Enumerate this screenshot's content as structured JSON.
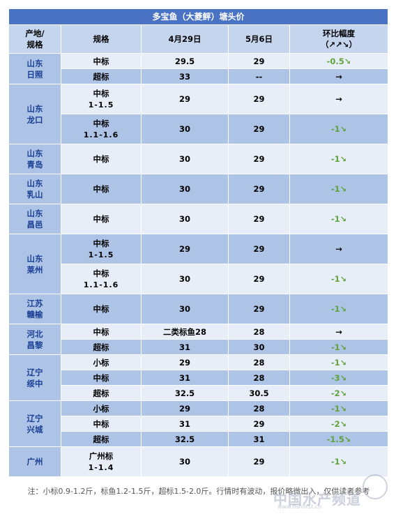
{
  "title": "多宝鱼（大菱鲆）塘头价",
  "headers": {
    "place": [
      "产地/",
      "规格"
    ],
    "spec": "规格",
    "date1": "4月29日",
    "date2": "5月6日",
    "change": [
      "环比幅度",
      "（↗↗↘）"
    ]
  },
  "groups": [
    {
      "place": [
        "山东",
        "日照"
      ],
      "rows": [
        {
          "spec": [
            "中标"
          ],
          "p1": "29.5",
          "p2": "29",
          "chg": "-0.5↘",
          "dir": "down",
          "h": 22
        },
        {
          "spec": [
            "超标"
          ],
          "p1": "33",
          "p2": "--",
          "chg": "→",
          "dir": "flat",
          "h": 22
        }
      ]
    },
    {
      "place": [
        "山东",
        "龙口"
      ],
      "rows": [
        {
          "spec": [
            "中标",
            "1-1.5"
          ],
          "p1": "29",
          "p2": "29",
          "chg": "→",
          "dir": "flat",
          "h": 43
        },
        {
          "spec": [
            "中标",
            "1.1-1.6"
          ],
          "p1": "30",
          "p2": "29",
          "chg": "-1↘",
          "dir": "down",
          "h": 43
        }
      ]
    },
    {
      "place": [
        "山东",
        "青岛"
      ],
      "rows": [
        {
          "spec": [
            "中标"
          ],
          "p1": "30",
          "p2": "29",
          "chg": "-1↘",
          "dir": "down",
          "h": 43
        }
      ]
    },
    {
      "place": [
        "山东",
        "乳山"
      ],
      "rows": [
        {
          "spec": [
            "中标"
          ],
          "p1": "30",
          "p2": "29",
          "chg": "-1↘",
          "dir": "down",
          "h": 43
        }
      ]
    },
    {
      "place": [
        "山东",
        "昌邑"
      ],
      "rows": [
        {
          "spec": [
            "中标"
          ],
          "p1": "30",
          "p2": "29",
          "chg": "-1↘",
          "dir": "down",
          "h": 43
        }
      ]
    },
    {
      "place": [
        "山东",
        "莱州"
      ],
      "rows": [
        {
          "spec": [
            "中标",
            "1-1.5"
          ],
          "p1": "29",
          "p2": "29",
          "chg": "→",
          "dir": "flat",
          "h": 43
        },
        {
          "spec": [
            "中标",
            "1.1-1.6"
          ],
          "p1": "30",
          "p2": "29",
          "chg": "-1↘",
          "dir": "down",
          "h": 43
        }
      ]
    },
    {
      "place": [
        "江苏",
        "赣榆"
      ],
      "rows": [
        {
          "spec": [
            "中标"
          ],
          "p1": "30",
          "p2": "29",
          "chg": "-1↘",
          "dir": "down",
          "h": 43
        }
      ]
    },
    {
      "place": [
        "河北",
        "昌黎"
      ],
      "rows": [
        {
          "spec": [
            "中标"
          ],
          "p1": "二类标鱼28",
          "p2": "28",
          "chg": "→",
          "dir": "flat",
          "h": 22
        },
        {
          "spec": [
            "超标"
          ],
          "p1": "31",
          "p2": "30",
          "chg": "-1↘",
          "dir": "down",
          "h": 22
        }
      ]
    },
    {
      "place": [
        "辽宁",
        "绥中"
      ],
      "rows": [
        {
          "spec": [
            "小标"
          ],
          "p1": "29",
          "p2": "28",
          "chg": "-1↘",
          "dir": "down",
          "h": 22
        },
        {
          "spec": [
            "中标"
          ],
          "p1": "31",
          "p2": "28",
          "chg": "-3↘",
          "dir": "down",
          "h": 22
        },
        {
          "spec": [
            "超标"
          ],
          "p1": "32.5",
          "p2": "30.5",
          "chg": "-2↘",
          "dir": "down",
          "h": 22
        }
      ]
    },
    {
      "place": [
        "辽宁",
        "兴城"
      ],
      "rows": [
        {
          "spec": [
            "小标"
          ],
          "p1": "29",
          "p2": "28",
          "chg": "-1↘",
          "dir": "down",
          "h": 22
        },
        {
          "spec": [
            "中标"
          ],
          "p1": "31",
          "p2": "29",
          "chg": "-2↘",
          "dir": "down",
          "h": 22
        },
        {
          "spec": [
            "超标"
          ],
          "p1": "32.5",
          "p2": "31",
          "chg": "-1.5↘",
          "dir": "down",
          "h": 22
        }
      ]
    },
    {
      "place": [
        "广州"
      ],
      "rows": [
        {
          "spec": [
            "广州标",
            "1-1.4"
          ],
          "p1": "30",
          "p2": "29",
          "chg": "-1↘",
          "dir": "down",
          "h": 43
        }
      ]
    }
  ],
  "note": "注：小标0.9-1.2斤，标鱼1.2-1.5斤，超标1.5-2.0斤。行情时有波动，报价略微出入，仅供读者参考",
  "watermark": "中国水产频道",
  "watermark_url": "www.fishfirst.cn",
  "colors": {
    "title_bg": "#4a73c4",
    "header_bg": "#c5d5ee",
    "row_light": "#e8eef8",
    "row_dark": "#adc4e6",
    "place_text": "#1a3f95",
    "down_text": "#5fa23a"
  }
}
